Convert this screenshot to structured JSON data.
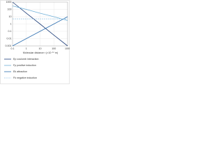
{
  "chart_data": {
    "type": "line",
    "x_label": "Molecular distance r (×10⁻¹⁰ m)",
    "x": [
      0.1,
      1,
      10,
      100,
      1000
    ],
    "series": [
      {
        "name": "Ep  coulomb interaction",
        "color": "#1f3f7a",
        "dash": false,
        "values": [
          1000,
          30,
          1,
          0.03,
          0.001
        ]
      },
      {
        "name": "Fp  positive induction",
        "color": "#6fb0d8",
        "dash": false,
        "values": [
          300,
          100,
          30,
          10,
          3
        ]
      },
      {
        "name": "Ek  attraction",
        "color": "#2e6fb0",
        "dash": false,
        "values": [
          0.001,
          0.01,
          0.1,
          1,
          10
        ]
      },
      {
        "name": "Fk  negative induction",
        "color": "#9cc7e6",
        "dash": true,
        "values": [
          5,
          5,
          5,
          5,
          5
        ]
      }
    ],
    "xlim": [
      0.1,
      1000
    ],
    "xticks": [
      0.1,
      1,
      10,
      100,
      1000
    ],
    "ylim": [
      0.001,
      1000
    ],
    "yticks": [
      0.001,
      0.01,
      0.1,
      1,
      10,
      100,
      1000
    ],
    "log_x": true,
    "log_y": true,
    "grid": true
  }
}
